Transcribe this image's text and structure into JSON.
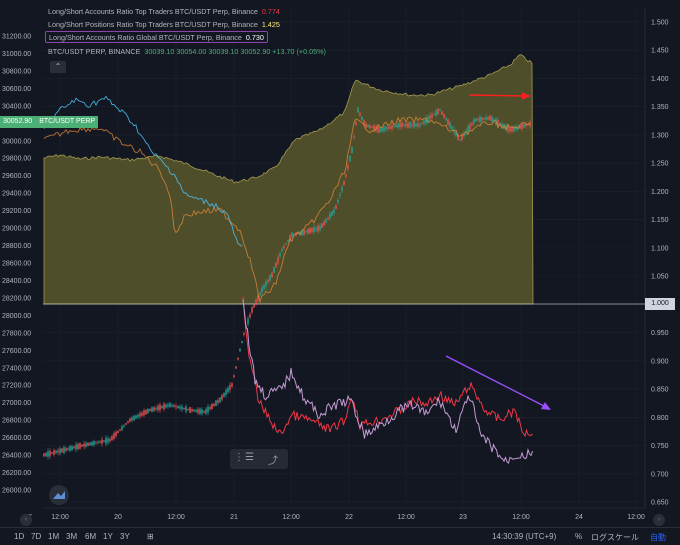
{
  "legend": {
    "row1": {
      "label": "Long/Short Accounts Ratio Top Traders BTC/USDT Perp, Binance",
      "value": "0.774",
      "color": "#f23645"
    },
    "row2": {
      "label": "Long/Short Positions Ratio Top Traders BTC/USDT Perp, Binance",
      "value": "1.425",
      "color": "#fff176"
    },
    "row3": {
      "label": "Long/Short Accounts Ratio Global BTC/USDT Perp, Binance",
      "value": "0.730",
      "color": "#ffffff"
    },
    "row4": {
      "label": "BTC/USDT PERP, BINANCE",
      "values": "30039.10  30054.00  30039.10  30052.90  +13.70 (+0.05%)"
    }
  },
  "collapse_icon": "chevron-up-icon",
  "price_tag": {
    "value": "30052.90",
    "symbol": "BTC/USDT PERP"
  },
  "ratio_tag": "1.000",
  "left_axis": [
    "31200.00",
    "31000.00",
    "30800.00",
    "30600.00",
    "30400.00",
    "30200.00",
    "30000.00",
    "29800.00",
    "29600.00",
    "29400.00",
    "29200.00",
    "29000.00",
    "28800.00",
    "28600.00",
    "28400.00",
    "28200.00",
    "28000.00",
    "27800.00",
    "27600.00",
    "27400.00",
    "27200.00",
    "27000.00",
    "26800.00",
    "26600.00",
    "26400.00",
    "26200.00",
    "26000.00"
  ],
  "right_axis": [
    "1.500",
    "1.450",
    "1.400",
    "1.350",
    "1.300",
    "1.250",
    "1.200",
    "1.150",
    "1.100",
    "1.050",
    "1.000",
    "0.950",
    "0.900",
    "0.850",
    "0.800",
    "0.750",
    "0.700",
    "0.650"
  ],
  "time_axis": [
    "12:00",
    "20",
    "12:00",
    "21",
    "12:00",
    "22",
    "12:00",
    "23",
    "12:00",
    "24",
    "12:00"
  ],
  "time_axis_left_marker": "Z",
  "periods": [
    "1D",
    "7D",
    "1M",
    "3M",
    "6M",
    "1Y",
    "3Y"
  ],
  "status": {
    "time": "14:30:39 (UTC+9)",
    "percent": "%",
    "log": "ログスケール",
    "auto": "自動"
  },
  "colors": {
    "background": "#131722",
    "area_fill": "#5d5a2c",
    "area_line": "#a39a52",
    "candle_up": "#26a69a",
    "candle_down": "#ef5350",
    "price_line_orange": "#e08a3a",
    "price_line_cyan": "#4fc3f7",
    "red_ratio": "#f23645",
    "purple_ratio": "#c39bd3",
    "arrow_red": "#ff1e1e",
    "arrow_purple": "#9c4dff",
    "price_tag": "#4caf76"
  }
}
